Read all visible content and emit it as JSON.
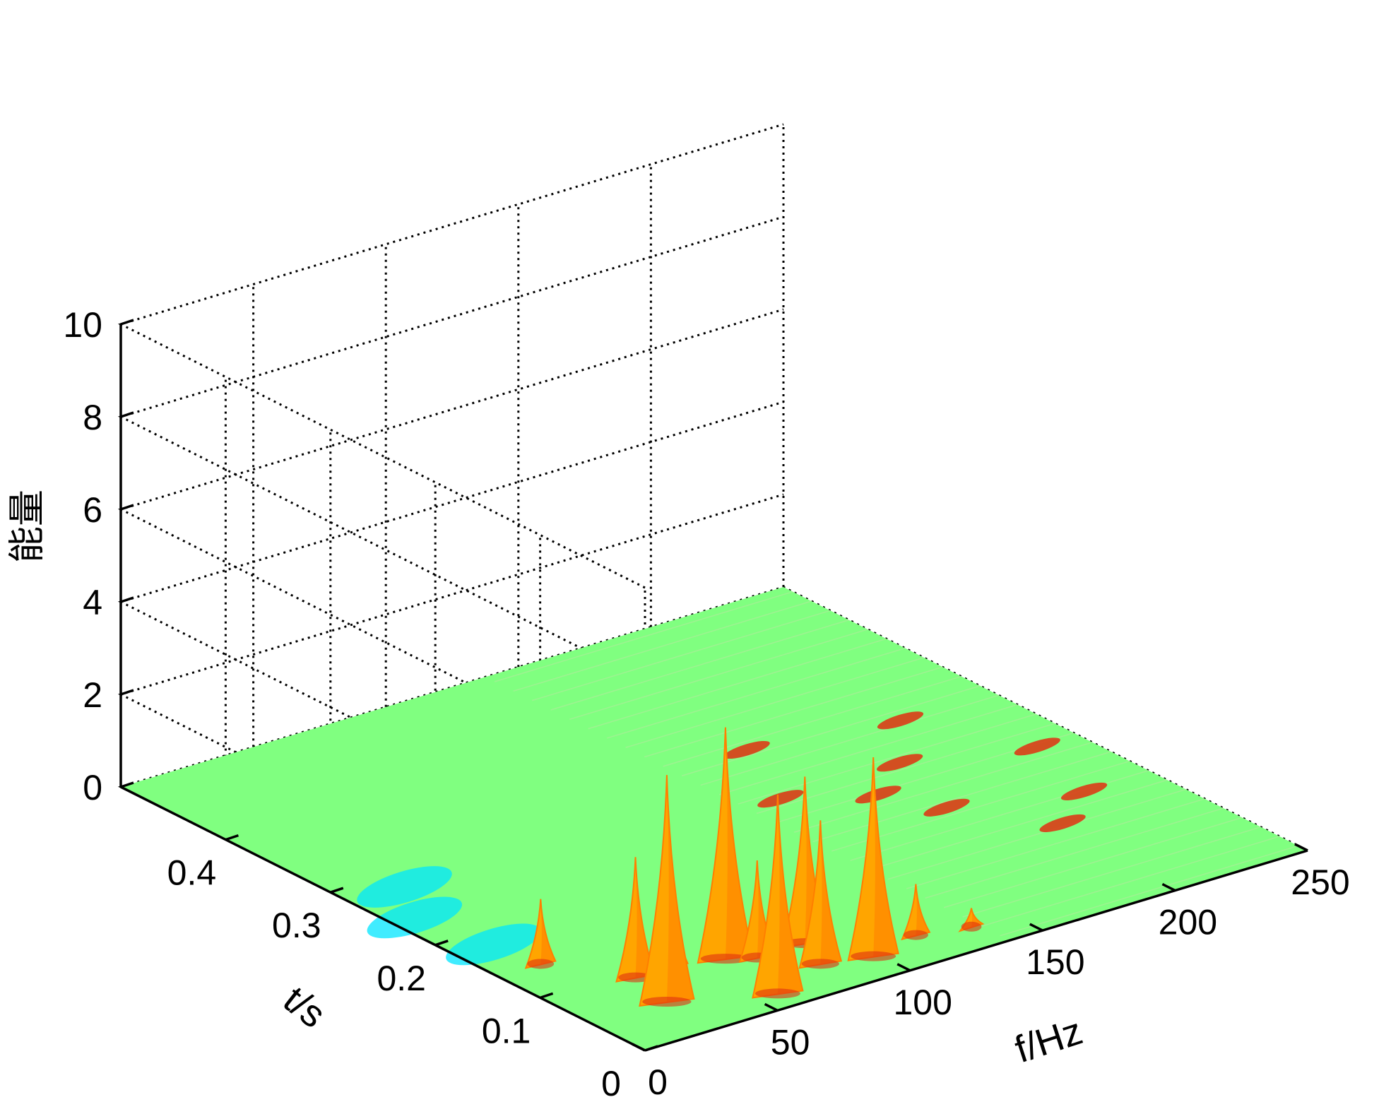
{
  "chart_data": {
    "type": "surface",
    "xlabel": "f/Hz",
    "ylabel": "t/s",
    "zlabel": "能量",
    "xlim": [
      0,
      250
    ],
    "ylim": [
      0,
      0.5
    ],
    "zlim": [
      0,
      10
    ],
    "x_ticks": [
      0,
      50,
      100,
      150,
      200,
      250
    ],
    "y_ticks": [
      0,
      0.1,
      0.2,
      0.3,
      0.4
    ],
    "z_ticks": [
      0,
      2,
      4,
      6,
      8,
      10
    ],
    "x_tick_labels": [
      "0",
      "50",
      "100",
      "150",
      "200",
      "250"
    ],
    "y_tick_labels": [
      "0",
      "0.1",
      "0.2",
      "0.3",
      "0.4"
    ],
    "z_tick_labels": [
      "0",
      "2",
      "4",
      "6",
      "8",
      "10"
    ],
    "grid": true,
    "colors": {
      "base": "#80ff80",
      "peak": "#ffa500",
      "peak_dark": "#ff7f00",
      "hot": "#e03010",
      "cool": "#00e5ff"
    },
    "peaks": [
      {
        "f": 16,
        "t": 0.14,
        "e": 1.4
      },
      {
        "f": 28,
        "t": 0.05,
        "e": 4.9
      },
      {
        "f": 32,
        "t": 0.09,
        "e": 2.6
      },
      {
        "f": 46,
        "t": 0.09,
        "e": 1.5
      },
      {
        "f": 58,
        "t": 0.02,
        "e": 4.3
      },
      {
        "f": 62,
        "t": 0.08,
        "e": 5.0
      },
      {
        "f": 70,
        "t": 0.07,
        "e": 2.1
      },
      {
        "f": 82,
        "t": 0.04,
        "e": 3.1
      },
      {
        "f": 88,
        "t": 0.07,
        "e": 3.6
      },
      {
        "f": 98,
        "t": 0.03,
        "e": 4.3
      },
      {
        "f": 118,
        "t": 0.04,
        "e": 1.1
      },
      {
        "f": 135,
        "t": 0.03,
        "e": 0.4
      }
    ],
    "hot_patches": [
      {
        "f": 150,
        "t": 0.25
      },
      {
        "f": 165,
        "t": 0.32
      },
      {
        "f": 175,
        "t": 0.22
      },
      {
        "f": 185,
        "t": 0.18
      },
      {
        "f": 195,
        "t": 0.25
      },
      {
        "f": 205,
        "t": 0.12
      },
      {
        "f": 215,
        "t": 0.3
      },
      {
        "f": 225,
        "t": 0.15
      },
      {
        "f": 235,
        "t": 0.22
      }
    ],
    "cool_patches": [
      {
        "f": 8,
        "t": 0.24
      },
      {
        "f": 14,
        "t": 0.18
      },
      {
        "f": 20,
        "t": 0.28
      }
    ]
  }
}
